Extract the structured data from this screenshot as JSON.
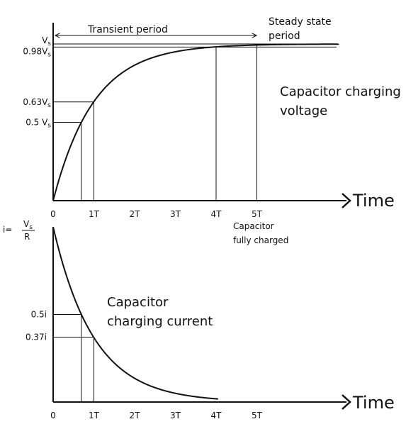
{
  "chart_data": [
    {
      "type": "line",
      "series": [
        {
          "x": [
            0,
            0.25,
            0.5,
            0.75,
            1,
            1.5,
            2,
            2.5,
            3,
            3.5,
            4,
            4.5,
            5,
            6
          ],
          "y": [
            0,
            0.22,
            0.39,
            0.53,
            0.63,
            0.78,
            0.86,
            0.92,
            0.95,
            0.97,
            0.98,
            0.99,
            1.0,
            1.0
          ]
        }
      ],
      "xlabel": "Time",
      "x_ticks": [
        "0",
        "1T",
        "2T",
        "3T",
        "4T",
        "5T"
      ],
      "y_ticks": [
        "V",
        "0.98V",
        "0.63V",
        "0.5 V"
      ],
      "y_tick_values": [
        1.0,
        0.98,
        0.63,
        0.5
      ],
      "y_tick_subscript": "s",
      "xlim": [
        0,
        7
      ],
      "ylim": [
        0,
        1.0
      ],
      "markers": [
        {
          "label": "0.5 V",
          "x": 0.69,
          "y": 0.5
        },
        {
          "label": "0.63V",
          "x": 1,
          "y": 0.63
        },
        {
          "label": "0.98V",
          "x": 4,
          "y": 0.98
        },
        {
          "label": "V",
          "x": 5,
          "y": 1.0
        }
      ],
      "annotations": {
        "transient": "Transient period",
        "steady_line1": "Steady state",
        "steady_line2": "period",
        "title_line1": "Capacitor charging",
        "title_line2": "voltage",
        "fully_line1": "Capacitor",
        "fully_line2": "fully charged"
      }
    },
    {
      "type": "line",
      "series": [
        {
          "x": [
            0,
            0.25,
            0.5,
            0.75,
            1,
            1.5,
            2,
            2.5,
            3,
            3.5,
            4
          ],
          "y": [
            1,
            0.78,
            0.61,
            0.47,
            0.37,
            0.22,
            0.14,
            0.08,
            0.05,
            0.02,
            0.0
          ]
        }
      ],
      "xlabel": "Time",
      "x_ticks": [
        "0",
        "1T",
        "2T",
        "3T",
        "4T",
        "5T"
      ],
      "y_ticks": [
        "0.5i",
        "0.37i"
      ],
      "y_tick_values": [
        0.5,
        0.37
      ],
      "y_top_label": {
        "lhs": "i=",
        "numerator": "V",
        "numerator_sub": "s",
        "denominator": "R"
      },
      "xlim": [
        0,
        7
      ],
      "ylim": [
        0,
        1.0
      ],
      "markers": [
        {
          "label": "0.5i",
          "x": 0.69,
          "y": 0.5
        },
        {
          "label": "0.37i",
          "x": 1,
          "y": 0.37
        }
      ],
      "annotations": {
        "title_line1": "Capacitor",
        "title_line2": "charging current"
      }
    }
  ]
}
